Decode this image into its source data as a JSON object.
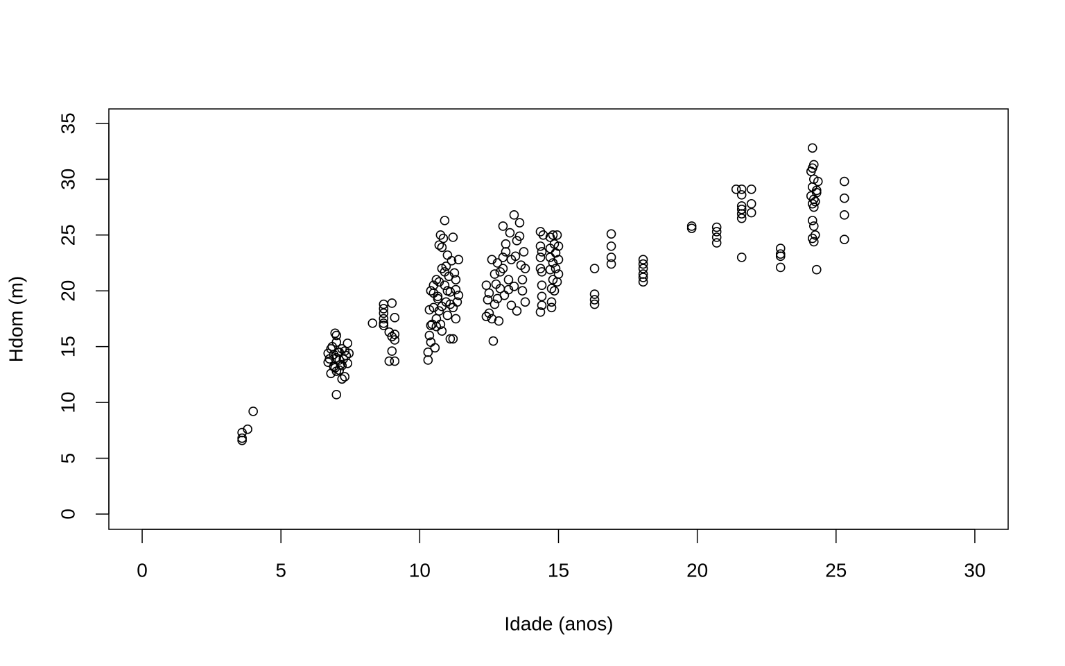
{
  "chart_data": {
    "type": "scatter",
    "xlabel": "Idade (anos)",
    "ylabel": "Hdom (m)",
    "xlim": [
      -1.2,
      31.2
    ],
    "ylim": [
      -1.37,
      36.3
    ],
    "xticks": [
      0,
      5,
      10,
      15,
      20,
      25,
      30
    ],
    "yticks": [
      0,
      5,
      10,
      15,
      20,
      25,
      30,
      35
    ],
    "color": "#000000",
    "x": [
      3.6,
      3.6,
      3.6,
      3.8,
      4.0,
      6.7,
      6.7,
      6.75,
      6.8,
      6.85,
      6.9,
      6.9,
      6.95,
      7.0,
      7.0,
      7.0,
      7.05,
      7.1,
      7.1,
      7.15,
      7.2,
      7.2,
      7.25,
      7.3,
      7.3,
      7.35,
      7.4,
      7.4,
      7.45,
      7.0,
      6.95,
      7.0,
      6.8,
      7.2,
      7.1,
      8.3,
      8.7,
      8.7,
      8.7,
      8.7,
      8.7,
      8.7,
      8.9,
      8.9,
      9.0,
      9.0,
      9.0,
      9.1,
      9.1,
      9.1,
      9.1,
      10.3,
      10.3,
      10.35,
      10.35,
      10.4,
      10.4,
      10.45,
      10.5,
      10.5,
      10.55,
      10.6,
      10.6,
      10.65,
      10.7,
      10.7,
      10.75,
      10.75,
      10.8,
      10.8,
      10.85,
      10.9,
      10.9,
      10.95,
      11.0,
      11.0,
      11.05,
      11.1,
      11.1,
      11.15,
      11.2,
      11.2,
      11.25,
      11.3,
      11.3,
      11.35,
      11.4,
      11.4,
      10.6,
      10.7,
      10.8,
      10.9,
      11.0,
      10.8,
      10.5,
      11.2,
      10.65,
      10.95,
      11.1,
      10.4,
      11.3,
      12.4,
      12.4,
      12.45,
      12.5,
      12.5,
      12.6,
      12.65,
      12.7,
      12.7,
      12.75,
      12.8,
      12.8,
      12.85,
      12.9,
      12.9,
      13.0,
      13.0,
      13.05,
      13.1,
      13.1,
      13.2,
      13.2,
      13.25,
      13.3,
      13.3,
      13.4,
      13.4,
      13.45,
      13.5,
      13.5,
      13.6,
      13.6,
      13.65,
      13.7,
      13.7,
      13.75,
      13.8,
      13.8,
      12.6,
      13.0,
      14.35,
      14.35,
      14.35,
      14.35,
      14.4,
      14.4,
      14.4,
      14.4,
      14.4,
      14.45,
      14.7,
      14.7,
      14.7,
      14.75,
      14.75,
      14.75,
      14.8,
      14.8,
      14.8,
      14.85,
      14.85,
      14.9,
      14.9,
      14.95,
      14.95,
      15.0,
      15.0,
      15.0,
      14.7,
      14.35,
      16.3,
      16.3,
      16.3,
      16.3,
      16.9,
      16.9,
      16.9,
      16.9,
      18.05,
      18.05,
      18.05,
      18.05,
      18.05,
      18.05,
      19.8,
      19.8,
      20.7,
      20.7,
      20.7,
      20.7,
      21.4,
      21.6,
      21.6,
      21.6,
      21.6,
      21.6,
      21.6,
      21.6,
      21.95,
      21.95,
      21.95,
      23.0,
      23.0,
      23.0,
      23.0,
      24.15,
      24.2,
      24.15,
      24.1,
      24.2,
      24.15,
      24.3,
      24.1,
      24.2,
      24.15,
      24.2,
      24.15,
      24.2,
      24.25,
      24.15,
      24.2,
      24.3,
      24.35,
      24.3,
      24.25,
      25.3,
      25.3,
      25.3,
      25.3
    ],
    "values": [
      7.3,
      6.6,
      6.8,
      7.6,
      9.2,
      14.4,
      13.6,
      13.9,
      12.6,
      15.0,
      14.3,
      13.2,
      16.2,
      16.0,
      15.4,
      10.7,
      14.5,
      13.8,
      12.9,
      13.4,
      14.8,
      12.1,
      13.9,
      12.3,
      14.6,
      14.2,
      15.3,
      13.5,
      14.4,
      12.8,
      13.1,
      14.0,
      14.8,
      13.3,
      14.5,
      17.1,
      18.8,
      18.4,
      18.0,
      17.5,
      17.1,
      16.9,
      16.3,
      13.7,
      18.9,
      14.6,
      15.9,
      17.6,
      15.6,
      16.1,
      13.7,
      13.8,
      14.5,
      16.0,
      18.3,
      15.4,
      20.0,
      17.0,
      18.5,
      19.8,
      14.9,
      21.0,
      17.5,
      19.3,
      24.1,
      20.8,
      25.0,
      17.0,
      22.0,
      18.6,
      24.7,
      26.3,
      20.5,
      19.0,
      23.2,
      17.8,
      21.3,
      15.7,
      19.9,
      22.7,
      15.7,
      18.5,
      21.6,
      20.1,
      17.5,
      19.0,
      22.8,
      19.6,
      16.8,
      18.2,
      23.9,
      21.7,
      20.0,
      16.4,
      20.5,
      24.8,
      19.5,
      22.2,
      18.8,
      16.9,
      21.0,
      20.5,
      17.7,
      19.2,
      18.0,
      19.8,
      22.8,
      15.5,
      21.5,
      18.8,
      20.6,
      22.5,
      19.3,
      17.3,
      21.7,
      20.2,
      25.8,
      22.0,
      19.6,
      23.5,
      24.2,
      21.0,
      20.1,
      25.2,
      22.8,
      18.7,
      26.8,
      20.4,
      23.1,
      18.2,
      24.5,
      26.1,
      24.9,
      22.3,
      21.0,
      20.0,
      23.5,
      22.0,
      19.0,
      17.5,
      23.0,
      25.3,
      24.0,
      22.0,
      18.1,
      23.5,
      21.7,
      20.5,
      19.5,
      18.7,
      25.0,
      24.8,
      23.8,
      21.9,
      20.2,
      19.0,
      18.5,
      25.0,
      22.5,
      21.0,
      24.2,
      20.0,
      23.4,
      22.0,
      25.0,
      20.8,
      24.0,
      22.8,
      21.5,
      23.0,
      23.0,
      22.0,
      19.7,
      19.2,
      18.8,
      25.1,
      24.0,
      23.0,
      22.4,
      22.8,
      22.4,
      22.0,
      21.5,
      21.2,
      20.8,
      25.8,
      25.6,
      25.7,
      25.3,
      24.8,
      24.3,
      29.1,
      29.1,
      28.6,
      27.6,
      27.3,
      26.9,
      26.5,
      23.0,
      29.1,
      27.8,
      27.0,
      23.8,
      23.3,
      23.1,
      22.1,
      32.8,
      31.3,
      31.0,
      30.7,
      30.0,
      29.3,
      29.0,
      28.5,
      28.2,
      27.8,
      27.5,
      26.3,
      25.8,
      25.0,
      24.7,
      24.4,
      21.9,
      29.8,
      28.8,
      28.0,
      29.8,
      28.3,
      26.8,
      24.6
    ]
  }
}
